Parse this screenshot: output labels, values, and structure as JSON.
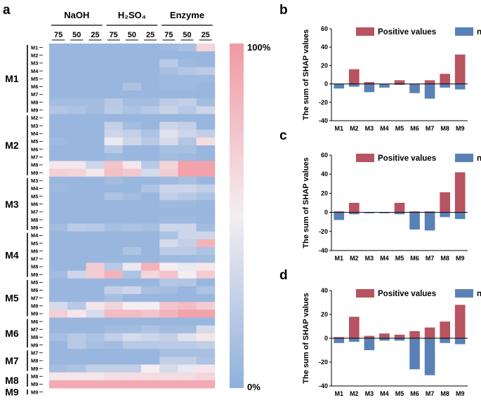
{
  "panel_labels": {
    "a": "a",
    "b": "b",
    "c": "c",
    "d": "d"
  },
  "colors": {
    "positive": "#b85360",
    "negative": "#5a81b6",
    "low": "#8fb0dc",
    "mid": "#f4eef2",
    "high": "#f19aa3"
  },
  "chart_data": [
    {
      "type": "heatmap",
      "panel": "a",
      "column_groups": [
        {
          "name": "NaOH",
          "columns": [
            "75",
            "50",
            "25"
          ]
        },
        {
          "name": "H₂SO₄",
          "columns": [
            "75",
            "50",
            "25"
          ]
        },
        {
          "name": "Enzyme",
          "columns": [
            "75",
            "50",
            "25"
          ]
        }
      ],
      "colorbar": {
        "max_label": "100%",
        "min_label": "0%",
        "range": [
          0,
          100
        ]
      },
      "row_groups": [
        {
          "name": "M1",
          "rows": [
            "M1",
            "M2",
            "M3",
            "M4",
            "M5",
            "M6",
            "M7",
            "M8",
            "M9"
          ]
        },
        {
          "name": "M2",
          "rows": [
            "M2",
            "M3",
            "M4",
            "M5",
            "M6",
            "M7",
            "M8",
            "M9"
          ]
        },
        {
          "name": "M3",
          "rows": [
            "M3",
            "M4",
            "M5",
            "M6",
            "M7",
            "M8",
            "M9"
          ]
        },
        {
          "name": "M4",
          "rows": [
            "M4",
            "M5",
            "M6",
            "M7",
            "M8",
            "M9"
          ]
        },
        {
          "name": "M5",
          "rows": [
            "M5",
            "M6",
            "M7",
            "M8",
            "M9"
          ]
        },
        {
          "name": "M6",
          "rows": [
            "M6",
            "M7",
            "M8",
            "M9"
          ]
        },
        {
          "name": "M7",
          "rows": [
            "M7",
            "M8",
            "M9"
          ]
        },
        {
          "name": "M8",
          "rows": [
            "M8",
            "M9"
          ]
        },
        {
          "name": "M9",
          "rows": [
            "M9"
          ]
        }
      ],
      "values": [
        [
          5,
          5,
          5,
          5,
          5,
          5,
          8,
          12,
          65
        ],
        [
          5,
          5,
          5,
          5,
          5,
          5,
          5,
          5,
          5
        ],
        [
          5,
          5,
          5,
          5,
          5,
          5,
          22,
          8,
          5
        ],
        [
          5,
          5,
          5,
          5,
          5,
          5,
          12,
          18,
          22
        ],
        [
          5,
          5,
          5,
          5,
          5,
          5,
          8,
          8,
          8
        ],
        [
          5,
          5,
          5,
          5,
          15,
          5,
          8,
          8,
          5
        ],
        [
          5,
          5,
          5,
          5,
          5,
          5,
          5,
          5,
          5
        ],
        [
          10,
          10,
          10,
          20,
          10,
          10,
          22,
          25,
          10
        ],
        [
          18,
          15,
          10,
          22,
          15,
          20,
          28,
          20,
          30
        ],
        [
          5,
          5,
          5,
          5,
          5,
          5,
          5,
          5,
          5
        ],
        [
          5,
          5,
          5,
          25,
          10,
          5,
          30,
          25,
          5
        ],
        [
          5,
          5,
          5,
          30,
          25,
          15,
          40,
          30,
          25
        ],
        [
          8,
          5,
          5,
          45,
          30,
          20,
          35,
          18,
          60
        ],
        [
          5,
          5,
          5,
          20,
          5,
          5,
          12,
          12,
          5
        ],
        [
          5,
          5,
          5,
          8,
          5,
          5,
          10,
          8,
          5
        ],
        [
          55,
          55,
          30,
          75,
          55,
          20,
          65,
          95,
          95
        ],
        [
          68,
          65,
          55,
          78,
          72,
          35,
          70,
          95,
          95
        ],
        [
          5,
          5,
          5,
          10,
          5,
          5,
          8,
          12,
          5
        ],
        [
          8,
          5,
          5,
          5,
          5,
          15,
          30,
          30,
          25
        ],
        [
          5,
          5,
          5,
          15,
          10,
          5,
          25,
          20,
          15
        ],
        [
          5,
          5,
          5,
          5,
          5,
          5,
          8,
          8,
          5
        ],
        [
          5,
          5,
          5,
          5,
          5,
          5,
          5,
          5,
          5
        ],
        [
          5,
          5,
          5,
          5,
          5,
          5,
          8,
          8,
          5
        ],
        [
          10,
          22,
          20,
          12,
          15,
          12,
          30,
          30,
          10
        ],
        [
          5,
          5,
          5,
          5,
          5,
          5,
          15,
          30,
          30
        ],
        [
          5,
          5,
          5,
          5,
          5,
          5,
          35,
          25,
          85
        ],
        [
          5,
          5,
          5,
          5,
          15,
          5,
          22,
          22,
          15
        ],
        [
          5,
          5,
          5,
          5,
          5,
          5,
          8,
          8,
          10
        ],
        [
          5,
          5,
          70,
          20,
          45,
          85,
          50,
          45,
          55
        ],
        [
          10,
          30,
          70,
          85,
          15,
          65,
          75,
          50,
          70
        ],
        [
          5,
          5,
          5,
          5,
          5,
          5,
          18,
          18,
          5
        ],
        [
          5,
          5,
          5,
          25,
          30,
          12,
          10,
          5,
          15
        ],
        [
          5,
          5,
          5,
          12,
          5,
          5,
          5,
          5,
          5
        ],
        [
          35,
          20,
          55,
          65,
          50,
          50,
          75,
          80,
          70
        ],
        [
          68,
          55,
          35,
          80,
          80,
          75,
          85,
          95,
          95
        ],
        [
          5,
          5,
          5,
          5,
          5,
          5,
          5,
          5,
          5
        ],
        [
          5,
          5,
          5,
          10,
          10,
          15,
          10,
          10,
          35
        ],
        [
          12,
          20,
          15,
          25,
          35,
          30,
          25,
          40,
          55
        ],
        [
          5,
          20,
          12,
          10,
          20,
          20,
          22,
          22,
          25
        ],
        [
          5,
          5,
          5,
          5,
          5,
          5,
          12,
          12,
          12
        ],
        [
          5,
          5,
          5,
          5,
          5,
          5,
          25,
          25,
          15
        ],
        [
          10,
          15,
          25,
          25,
          25,
          50,
          35,
          45,
          55
        ],
        [
          55,
          55,
          55,
          60,
          60,
          60,
          60,
          60,
          65
        ],
        [
          90,
          90,
          90,
          90,
          90,
          90,
          90,
          90,
          90
        ]
      ]
    },
    {
      "type": "bar",
      "panel": "b",
      "categories": [
        "M1",
        "M2",
        "M3",
        "M4",
        "M5",
        "M6",
        "M7",
        "M8",
        "M9"
      ],
      "series": [
        {
          "name": "Positive values",
          "values": [
            0,
            16,
            2,
            0,
            4,
            0,
            4,
            11,
            32
          ]
        },
        {
          "name": "negative values",
          "values": [
            -5,
            -3,
            -9,
            -4,
            -1,
            -10,
            -16,
            -4,
            -6
          ]
        }
      ],
      "yticks": [
        -40,
        -20,
        0,
        20,
        40,
        60
      ],
      "ylim": [
        -40,
        60
      ],
      "ylabel": "The sum of SHAP values",
      "xlabel": ""
    },
    {
      "type": "bar",
      "panel": "c",
      "categories": [
        "M1",
        "M2",
        "M3",
        "M4",
        "M5",
        "M6",
        "M7",
        "M8",
        "M9"
      ],
      "series": [
        {
          "name": "Positive values",
          "values": [
            1,
            10,
            0,
            0,
            10,
            1,
            1,
            21,
            42
          ]
        },
        {
          "name": "negative values",
          "values": [
            -8,
            -2,
            -1,
            -1,
            -2,
            -18,
            -19,
            -5,
            -7
          ]
        }
      ],
      "yticks": [
        -40,
        -20,
        0,
        20,
        40,
        60
      ],
      "ylim": [
        -40,
        60
      ],
      "ylabel": "The sum of SHAP values",
      "xlabel": ""
    },
    {
      "type": "bar",
      "panel": "d",
      "categories": [
        "M1",
        "M2",
        "M3",
        "M4",
        "M5",
        "M6",
        "M7",
        "M8",
        "M9"
      ],
      "series": [
        {
          "name": "Positive values",
          "values": [
            1,
            18,
            2,
            4,
            3,
            6,
            9,
            14,
            28
          ]
        },
        {
          "name": "negative values",
          "values": [
            -4,
            -3,
            -10,
            -2,
            -2,
            -26,
            -31,
            -4,
            -5
          ]
        }
      ],
      "yticks": [
        -40,
        -20,
        0,
        20,
        40
      ],
      "ylim": [
        -40,
        40
      ],
      "ylabel": "The sum of SHAP values",
      "xlabel": ""
    }
  ]
}
